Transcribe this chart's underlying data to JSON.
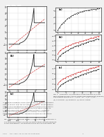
{
  "background_color": "#f0f0f0",
  "page_color": "#ffffff",
  "pdf_badge_color": "#2a2a2a",
  "pdf_text_color": "#ffffff",
  "left_plots": {
    "top": {
      "label": "",
      "has_red_dashes": true,
      "grid": true
    },
    "middle": {
      "label": "(b)",
      "has_red_dashes": true,
      "grid": true
    },
    "bottom": {
      "label": "(c)",
      "has_red_dashes": true,
      "grid": true
    }
  },
  "right_plots": {
    "top": {
      "label": "(a)",
      "dots_only": true,
      "grid": true
    },
    "middle": {
      "label": "(b)",
      "has_red": true,
      "grid": true
    },
    "bottom": {
      "label": "(c)",
      "has_red": true,
      "grid": true
    }
  },
  "line_black": "#111111",
  "line_red": "#cc2222",
  "grid_color": "#bbbbbb",
  "tick_fontsize": 1.8,
  "label_fontsize": 2.5,
  "text_color": "#333333",
  "caption_fontsize": 1.7,
  "body_fontsize": 1.6
}
